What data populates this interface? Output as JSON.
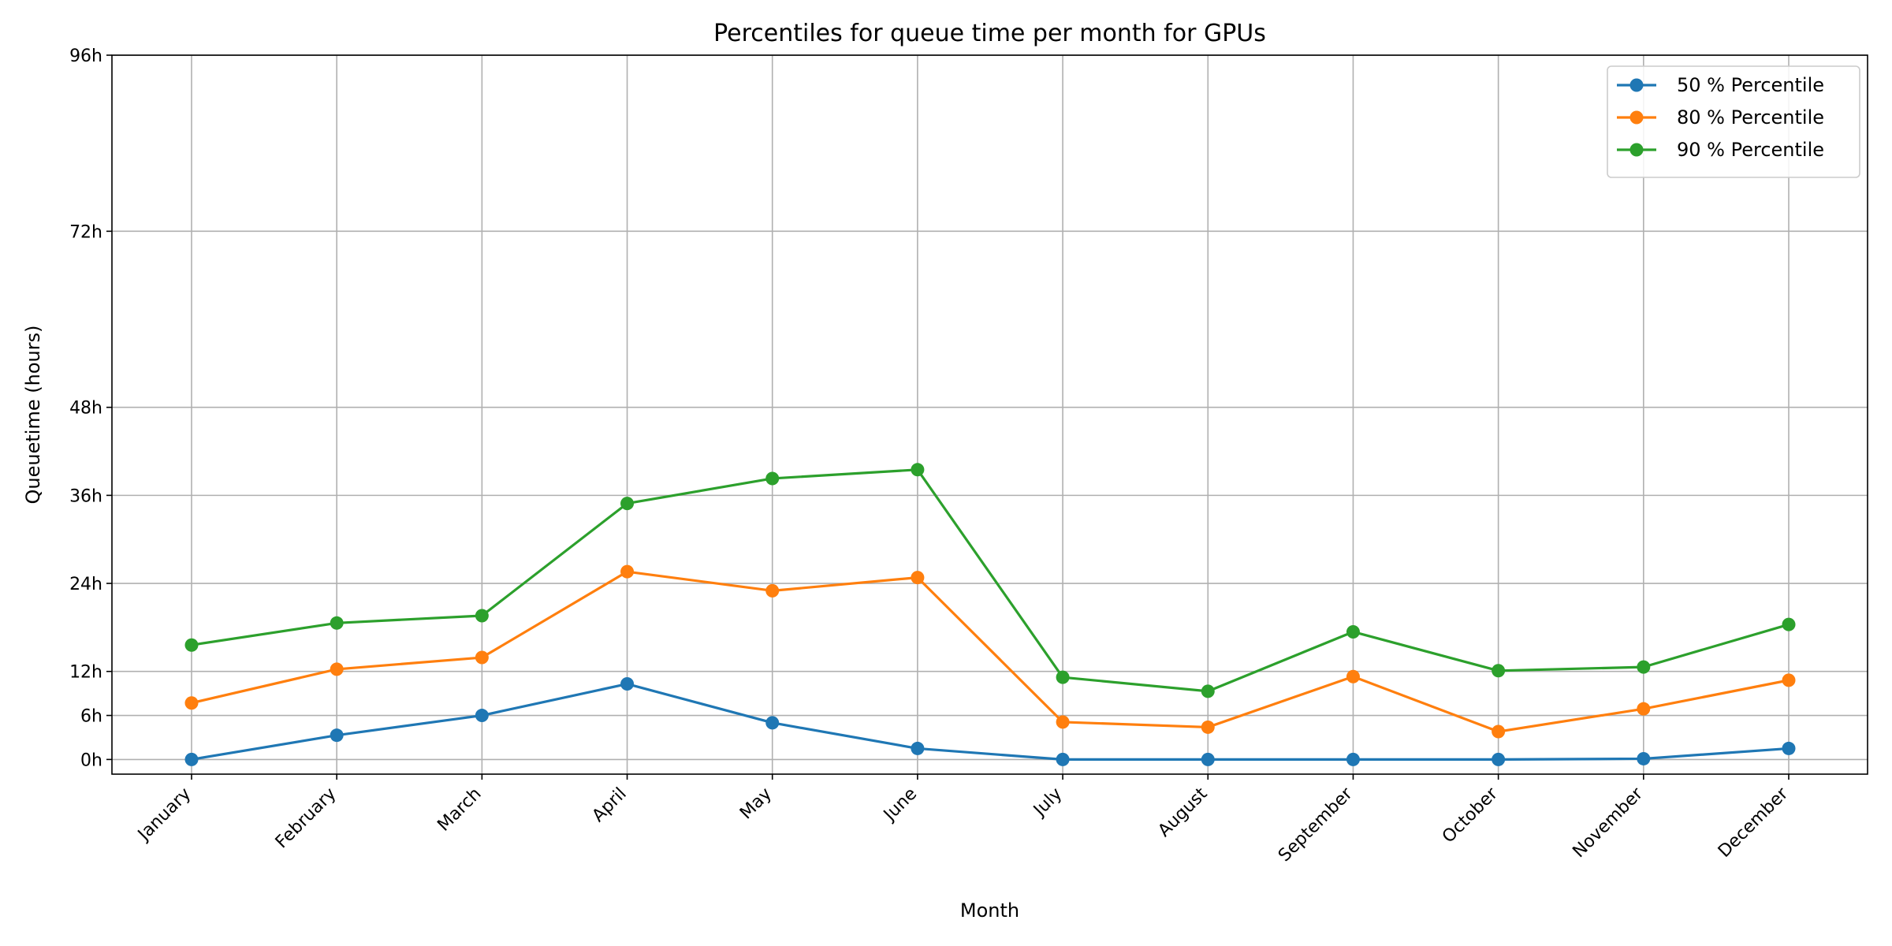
{
  "chart_data": {
    "type": "line",
    "title": "Percentiles for queue time per month for GPUs",
    "xlabel": "Month",
    "ylabel": "Queuetime (hours)",
    "categories": [
      "January",
      "February",
      "March",
      "April",
      "May",
      "June",
      "July",
      "August",
      "September",
      "October",
      "November",
      "December"
    ],
    "y_ticks": [
      0,
      6,
      12,
      24,
      36,
      48,
      72,
      96
    ],
    "y_tick_labels": [
      "0h",
      "6h",
      "12h",
      "24h",
      "36h",
      "48h",
      "72h",
      "96h"
    ],
    "ylim": [
      -2,
      96
    ],
    "grid": true,
    "legend_position": "top-right",
    "series": [
      {
        "name": "50 % Percentile",
        "color": "#1f77b4",
        "values": [
          0.0,
          3.3,
          6.0,
          10.3,
          5.0,
          1.5,
          0.0,
          0.0,
          0.0,
          0.0,
          0.1,
          1.5
        ]
      },
      {
        "name": "80 % Percentile",
        "color": "#ff7f0e",
        "values": [
          7.7,
          12.3,
          13.9,
          25.6,
          23.0,
          24.8,
          5.1,
          4.4,
          11.3,
          3.8,
          6.9,
          10.8
        ]
      },
      {
        "name": "90 % Percentile",
        "color": "#2ca02c",
        "values": [
          15.6,
          18.6,
          19.6,
          34.9,
          38.3,
          39.5,
          11.2,
          9.3,
          17.4,
          12.1,
          12.6,
          18.4
        ]
      }
    ]
  }
}
